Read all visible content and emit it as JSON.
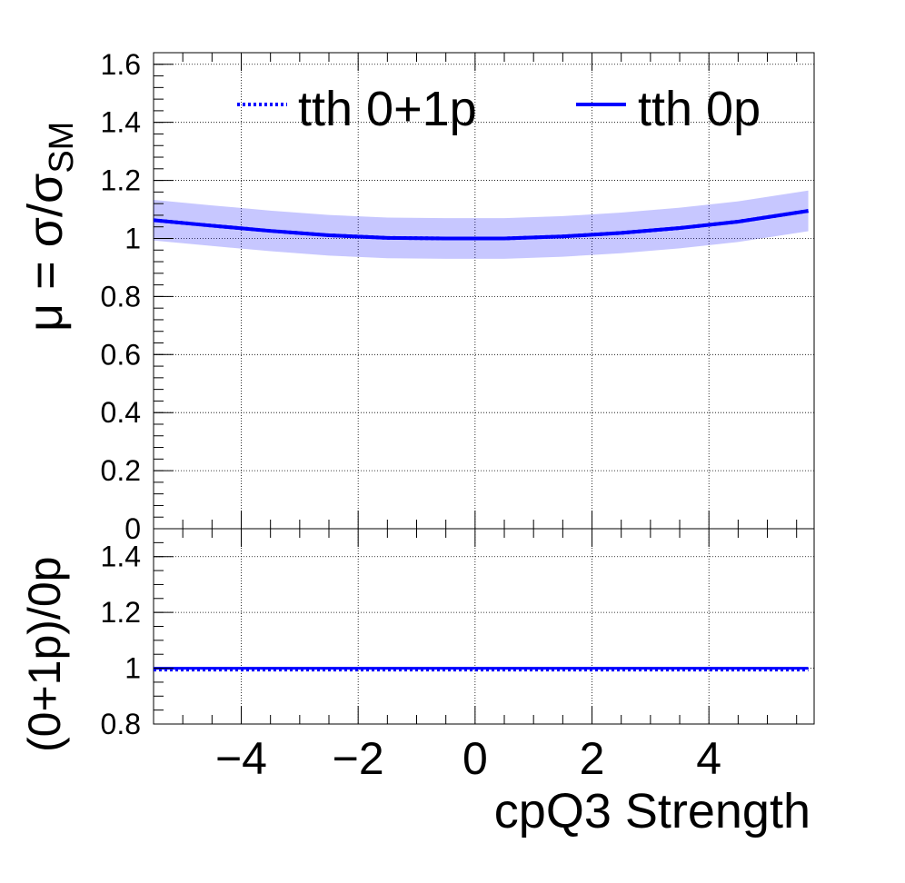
{
  "chart_data": [
    {
      "type": "line",
      "panel": "main",
      "ylabel": "μ = σ/σSM",
      "ylabel_parts": {
        "prefix": "μ = σ/σ",
        "sub": "SM"
      },
      "xlim": [
        -5.5,
        5.8
      ],
      "ylim": [
        0,
        1.64
      ],
      "yticks": [
        0,
        0.2,
        0.4,
        0.6,
        0.8,
        1,
        1.2,
        1.4,
        1.6
      ],
      "ytick_labels": [
        "0",
        "0.2",
        "0.4",
        "0.6",
        "0.8",
        "1",
        "1.2",
        "1.4",
        "1.6"
      ],
      "grid": true,
      "legend_placement": "top",
      "series": [
        {
          "name": "tth 0+1p",
          "style": "dotted",
          "color": "#0000ff",
          "x": [
            -5.5,
            -4.5,
            -3.5,
            -2.5,
            -1.5,
            -0.5,
            0.5,
            1.5,
            2.5,
            3.5,
            4.5,
            5.7
          ],
          "y": [
            1.063,
            1.044,
            1.026,
            1.011,
            1.002,
            1.0,
            1.0,
            1.007,
            1.019,
            1.036,
            1.058,
            1.095
          ],
          "band_half_width": 0.07
        },
        {
          "name": "tth 0p",
          "style": "solid",
          "color": "#0000ff",
          "x": [
            -5.5,
            -4.5,
            -3.5,
            -2.5,
            -1.5,
            -0.5,
            0.5,
            1.5,
            2.5,
            3.5,
            4.5,
            5.7
          ],
          "y": [
            1.063,
            1.044,
            1.026,
            1.011,
            1.002,
            1.0,
            1.0,
            1.007,
            1.019,
            1.036,
            1.058,
            1.095
          ]
        }
      ]
    },
    {
      "type": "line",
      "panel": "ratio",
      "ylabel": "(0+1p)/0p",
      "xlabel": "cpQ3 Strength",
      "xlim": [
        -5.5,
        5.8
      ],
      "ylim": [
        0.8,
        1.5
      ],
      "yticks": [
        0.8,
        1,
        1.2,
        1.4
      ],
      "ytick_labels": [
        "0.8",
        "1",
        "1.2",
        "1.4"
      ],
      "xticks": [
        -4,
        -2,
        0,
        2,
        4
      ],
      "xtick_labels": [
        "−4",
        "−2",
        "0",
        "2",
        "4"
      ],
      "grid": true,
      "series": [
        {
          "name": "(0+1p)/0p",
          "color": "#0000ff",
          "x": [
            -5.5,
            5.7
          ],
          "y": [
            1.0,
            1.0
          ]
        }
      ]
    }
  ]
}
